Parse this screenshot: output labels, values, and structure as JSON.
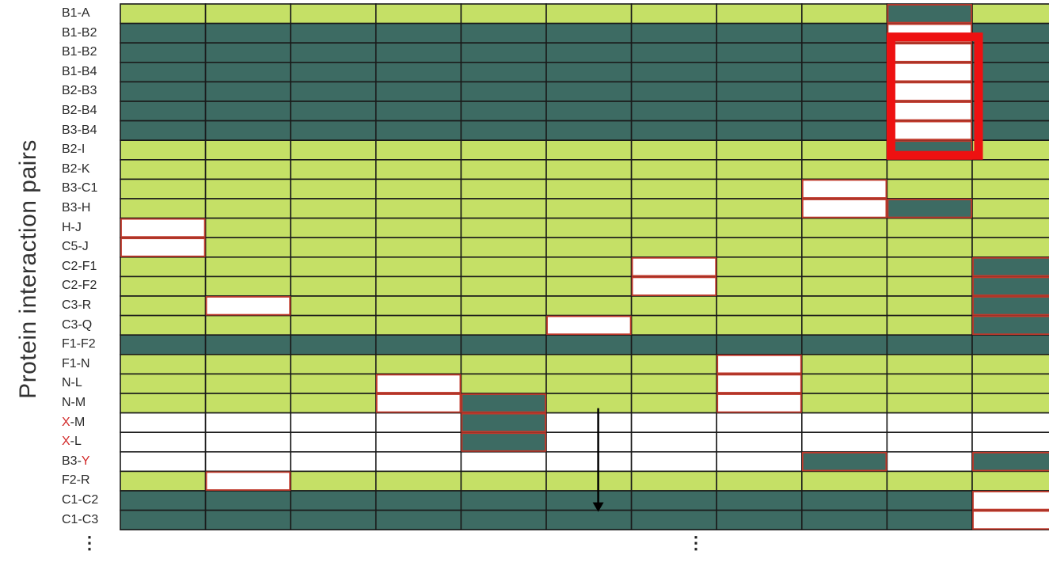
{
  "axis_label": "Protein interaction pairs",
  "colors": {
    "light": "#c5e066",
    "dark": "#3d6b63",
    "blank": "#ffffff",
    "highlight_border": "#c0392b",
    "box": "#ee1111",
    "line": "#1a1a1a"
  },
  "rows": [
    {
      "label": "B1-A",
      "pre": "B1-A",
      "red": "",
      "post": "",
      "cells": [
        "L",
        "L",
        "L",
        "L",
        "L",
        "L",
        "L",
        "L",
        "L",
        "D",
        "L"
      ]
    },
    {
      "label": "B1-B2",
      "pre": "B1-B2",
      "red": "",
      "post": "",
      "cells": [
        "D",
        "D",
        "D",
        "D",
        "D",
        "D",
        "D",
        "D",
        "D",
        "W",
        "D"
      ]
    },
    {
      "label": "B1-B2",
      "pre": "B1-B2",
      "red": "",
      "post": "",
      "cells": [
        "D",
        "D",
        "D",
        "D",
        "D",
        "D",
        "D",
        "D",
        "D",
        "W",
        "D"
      ]
    },
    {
      "label": "B1-B4",
      "pre": "B1-B4",
      "red": "",
      "post": "",
      "cells": [
        "D",
        "D",
        "D",
        "D",
        "D",
        "D",
        "D",
        "D",
        "D",
        "W",
        "D"
      ]
    },
    {
      "label": "B2-B3",
      "pre": "B2-B3",
      "red": "",
      "post": "",
      "cells": [
        "D",
        "D",
        "D",
        "D",
        "D",
        "D",
        "D",
        "D",
        "D",
        "W",
        "D"
      ]
    },
    {
      "label": "B2-B4",
      "pre": "B2-B4",
      "red": "",
      "post": "",
      "cells": [
        "D",
        "D",
        "D",
        "D",
        "D",
        "D",
        "D",
        "D",
        "D",
        "W",
        "D"
      ]
    },
    {
      "label": "B3-B4",
      "pre": "B3-B4",
      "red": "",
      "post": "",
      "cells": [
        "D",
        "D",
        "D",
        "D",
        "D",
        "D",
        "D",
        "D",
        "D",
        "W",
        "D"
      ]
    },
    {
      "label": "B2-I",
      "pre": "B2-I",
      "red": "",
      "post": "",
      "cells": [
        "L",
        "L",
        "L",
        "L",
        "L",
        "L",
        "L",
        "L",
        "L",
        "D",
        "L"
      ]
    },
    {
      "label": "B2-K",
      "pre": "B2-K",
      "red": "",
      "post": "",
      "cells": [
        "L",
        "L",
        "L",
        "L",
        "L",
        "L",
        "L",
        "L",
        "L",
        "L",
        "L"
      ]
    },
    {
      "label": "B3-C1",
      "pre": "B3-C1",
      "red": "",
      "post": "",
      "cells": [
        "L",
        "L",
        "L",
        "L",
        "L",
        "L",
        "L",
        "L",
        "W",
        "L",
        "L"
      ]
    },
    {
      "label": "B3-H",
      "pre": "B3-H",
      "red": "",
      "post": "",
      "cells": [
        "L",
        "L",
        "L",
        "L",
        "L",
        "L",
        "L",
        "L",
        "W",
        "D",
        "L"
      ]
    },
    {
      "label": "H-J",
      "pre": "H-J",
      "red": "",
      "post": "",
      "cells": [
        "W",
        "L",
        "L",
        "L",
        "L",
        "L",
        "L",
        "L",
        "L",
        "L",
        "L"
      ]
    },
    {
      "label": "C5-J",
      "pre": "C5-J",
      "red": "",
      "post": "",
      "cells": [
        "W",
        "L",
        "L",
        "L",
        "L",
        "L",
        "L",
        "L",
        "L",
        "L",
        "L"
      ]
    },
    {
      "label": "C2-F1",
      "pre": "C2-F1",
      "red": "",
      "post": "",
      "cells": [
        "L",
        "L",
        "L",
        "L",
        "L",
        "L",
        "W",
        "L",
        "L",
        "L",
        "D"
      ]
    },
    {
      "label": "C2-F2",
      "pre": "C2-F2",
      "red": "",
      "post": "",
      "cells": [
        "L",
        "L",
        "L",
        "L",
        "L",
        "L",
        "W",
        "L",
        "L",
        "L",
        "D"
      ]
    },
    {
      "label": "C3-R",
      "pre": "C3-R",
      "red": "",
      "post": "",
      "cells": [
        "L",
        "W",
        "L",
        "L",
        "L",
        "L",
        "L",
        "L",
        "L",
        "L",
        "D"
      ]
    },
    {
      "label": "C3-Q",
      "pre": "C3-Q",
      "red": "",
      "post": "",
      "cells": [
        "L",
        "L",
        "L",
        "L",
        "L",
        "W",
        "L",
        "L",
        "L",
        "L",
        "D"
      ]
    },
    {
      "label": "F1-F2",
      "pre": "F1-F2",
      "red": "",
      "post": "",
      "cells": [
        "D",
        "D",
        "D",
        "D",
        "D",
        "D",
        "D",
        "D",
        "D",
        "D",
        "D"
      ]
    },
    {
      "label": "F1-N",
      "pre": "F1-N",
      "red": "",
      "post": "",
      "cells": [
        "L",
        "L",
        "L",
        "L",
        "L",
        "L",
        "L",
        "W",
        "L",
        "L",
        "L"
      ]
    },
    {
      "label": "N-L",
      "pre": "N-L",
      "red": "",
      "post": "",
      "cells": [
        "L",
        "L",
        "L",
        "W",
        "L",
        "L",
        "L",
        "W",
        "L",
        "L",
        "L"
      ]
    },
    {
      "label": "N-M",
      "pre": "N-M",
      "red": "",
      "post": "",
      "cells": [
        "L",
        "L",
        "L",
        "W",
        "D",
        "L",
        "L",
        "W",
        "L",
        "L",
        "L"
      ]
    },
    {
      "label": "X-M",
      "pre": "",
      "red": "X",
      "post": "-M",
      "cells": [
        "W",
        "W",
        "W",
        "W",
        "D",
        "W",
        "W",
        "W",
        "W",
        "W",
        "W"
      ]
    },
    {
      "label": "X-L",
      "pre": "",
      "red": "X",
      "post": "-L",
      "cells": [
        "W",
        "W",
        "W",
        "W",
        "D",
        "W",
        "W",
        "W",
        "W",
        "W",
        "W"
      ]
    },
    {
      "label": "B3-Y",
      "pre": "B3-",
      "red": "Y",
      "post": "",
      "cells": [
        "W",
        "W",
        "W",
        "W",
        "W",
        "W",
        "W",
        "W",
        "D",
        "W",
        "D"
      ]
    },
    {
      "label": "F2-R",
      "pre": "F2-R",
      "red": "",
      "post": "",
      "cells": [
        "L",
        "W",
        "L",
        "L",
        "L",
        "L",
        "L",
        "L",
        "L",
        "L",
        "L"
      ]
    },
    {
      "label": "C1-C2",
      "pre": "C1-C2",
      "red": "",
      "post": "",
      "cells": [
        "D",
        "D",
        "D",
        "D",
        "D",
        "D",
        "D",
        "D",
        "D",
        "D",
        "W"
      ]
    },
    {
      "label": "C1-C3",
      "pre": "C1-C3",
      "red": "",
      "post": "",
      "cells": [
        "D",
        "D",
        "D",
        "D",
        "D",
        "D",
        "D",
        "D",
        "D",
        "D",
        "W"
      ]
    }
  ],
  "highlighted_column": 10,
  "highlighted_rows": [
    2,
    7
  ],
  "arrow_column_boundary": 6,
  "continuation_marks": [
    "⋮",
    "⋮"
  ]
}
